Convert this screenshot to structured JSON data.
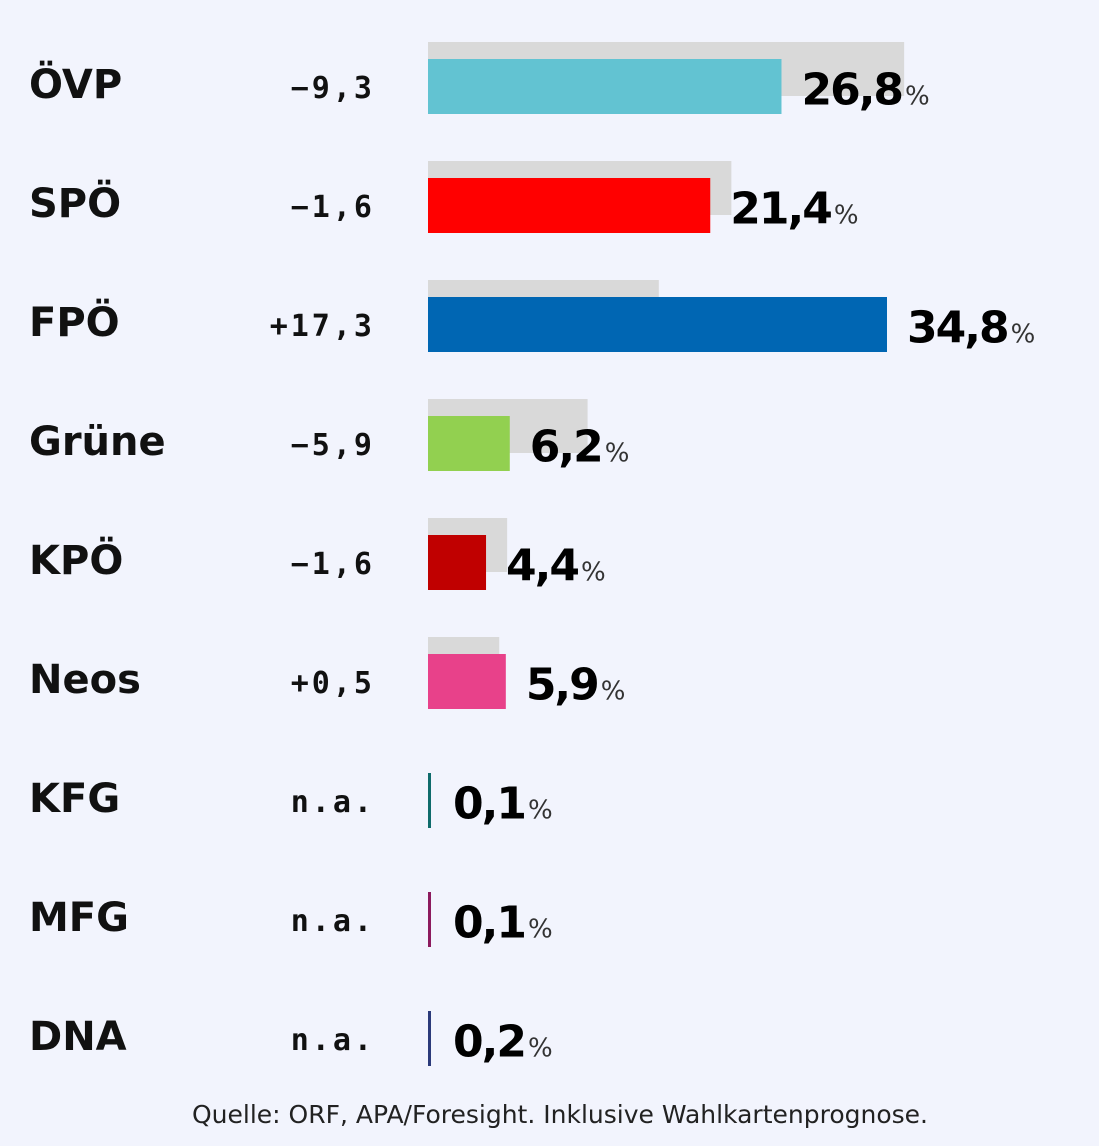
{
  "chart_data": {
    "type": "bar",
    "orientation": "horizontal",
    "unit": "%",
    "categories": [
      "ÖVP",
      "SPÖ",
      "FPÖ",
      "Grüne",
      "KPÖ",
      "Neos",
      "KFG",
      "MFG",
      "DNA"
    ],
    "series": [
      {
        "values": [
          26.8,
          21.4,
          34.8,
          6.2,
          4.4,
          5.9,
          0.1,
          0.1,
          0.2
        ],
        "labels": [
          "26,8",
          "21,4",
          "34,8",
          "6,2",
          "4,4",
          "5,9",
          "0,1",
          "0,1",
          "0,2"
        ],
        "colors": [
          "#62c3d2",
          "#ff0000",
          "#0066b3",
          "#92d050",
          "#c00000",
          "#e8418a",
          "#0f6b6b",
          "#8c1a5e",
          "#2b3a7a"
        ]
      },
      {
        "values": [
          36.1,
          23.0,
          17.5,
          12.1,
          6.0,
          5.4,
          null,
          null,
          null
        ],
        "color": "#d9d9d9"
      }
    ],
    "changes": [
      "−9,3",
      "−1,6",
      "+17,3",
      "−5,9",
      "−1,6",
      "+0,5",
      "n.a.",
      "n.a.",
      "n.a."
    ],
    "xlim": [
      0,
      34.8
    ],
    "grid": false,
    "legend": "none"
  },
  "source": "Quelle: ORF, APA/Foresight. Inklusive Wahlkartenprognose.",
  "background_color": "#f2f4fd"
}
